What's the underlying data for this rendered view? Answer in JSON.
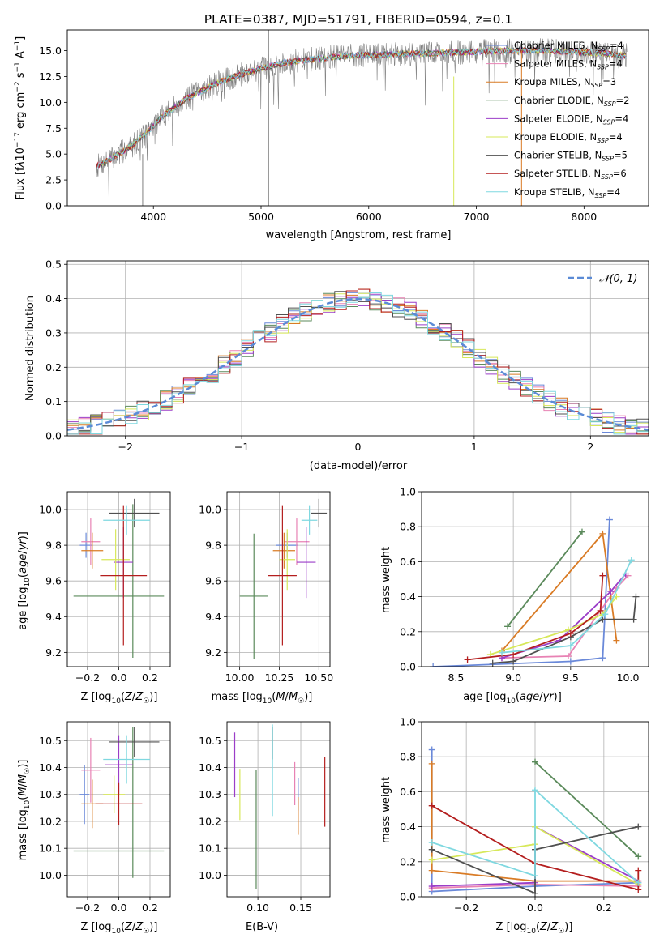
{
  "chart_data": [
    {
      "type": "line",
      "title": "PLATE=0387, MJD=51791, FIBERID=0594, z=0.1",
      "xlabel": "wavelength [Angstrom, rest frame]",
      "ylabel": "Flux [f_λ 10^-17 erg cm^-2 s^-1 A^-1]",
      "xlim": [
        3200,
        8600
      ],
      "ylim": [
        0,
        17
      ],
      "xticks": [
        4000,
        5000,
        6000,
        7000,
        8000
      ],
      "yticks": [
        0.0,
        2.5,
        5.0,
        7.5,
        10.0,
        12.5,
        15.0
      ],
      "continuum_x": [
        3470,
        3600,
        3800,
        3950,
        4100,
        4300,
        4500,
        4700,
        4900,
        5200,
        5500,
        5800,
        6100,
        6400,
        6700,
        7000,
        7300,
        7600,
        7900,
        8200,
        8400
      ],
      "continuum_y": [
        3.8,
        4.5,
        5.8,
        7.2,
        8.8,
        10.3,
        11.4,
        12.3,
        13.0,
        13.8,
        14.2,
        14.5,
        14.6,
        14.7,
        14.8,
        14.9,
        15.0,
        15.0,
        14.9,
        14.7,
        14.5
      ],
      "spikes": [
        {
          "x": 5070,
          "top": 17.0,
          "bottom": 0.0
        },
        {
          "x": 6790,
          "top": 12.5,
          "bottom": 0.0
        },
        {
          "x": 7420,
          "top": 15.0,
          "bottom": 0.0
        },
        {
          "x": 3900,
          "top": 5.0,
          "bottom": 0.0
        }
      ],
      "legend": {
        "placement": "right",
        "entries": [
          {
            "label": "Chabrier MILES, N_SSP=4",
            "color": "#6a89d9"
          },
          {
            "label": "Salpeter MILES, N_SSP=4",
            "color": "#e882b4"
          },
          {
            "label": "Kroupa MILES, N_SSP=3",
            "color": "#d97b25"
          },
          {
            "label": "Chabrier ELODIE, N_SSP=2",
            "color": "#5b8a5b"
          },
          {
            "label": "Salpeter ELODIE, N_SSP=4",
            "color": "#9b3dc8"
          },
          {
            "label": "Kroupa ELODIE, N_SSP=4",
            "color": "#d7e85a"
          },
          {
            "label": "Chabrier STELIB, N_SSP=5",
            "color": "#505050"
          },
          {
            "label": "Salpeter STELIB, N_SSP=6",
            "color": "#b41e1e"
          },
          {
            "label": "Kroupa STELIB, N_SSP=4",
            "color": "#7fd8e0"
          }
        ]
      }
    },
    {
      "type": "histogram",
      "xlabel": "(data-model)/error",
      "ylabel": "Normed distribution",
      "xlim": [
        -2.5,
        2.5
      ],
      "ylim": [
        0,
        0.51
      ],
      "xticks": [
        -2,
        -1,
        0,
        1,
        2
      ],
      "yticks": [
        0.0,
        0.1,
        0.2,
        0.3,
        0.4,
        0.5
      ],
      "grid": true,
      "bin_width": 0.1,
      "legend": {
        "placement": "top-right",
        "label": "𝒩(0, 1)"
      },
      "gaussian_color": "#5b8bd6"
    },
    {
      "type": "scatter",
      "panel": "age-vs-metallicity",
      "xlabel": "Z [log10(Z/Z☉)]",
      "ylabel": "age  [log10(age/yr)]",
      "xlim": [
        -0.33,
        0.33
      ],
      "ylim": [
        9.12,
        10.1
      ],
      "xticks": [
        -0.2,
        0.0,
        0.2
      ],
      "xtick_labels": [
        "−0.2",
        "0.0",
        "0.2"
      ],
      "yticks": [
        9.2,
        9.4,
        9.6,
        9.8,
        10.0
      ],
      "points": [
        {
          "color": "#6a89d9",
          "x": -0.21,
          "xerr": 0.04,
          "y": 9.8,
          "yerr": 0.07
        },
        {
          "color": "#e882b4",
          "x": -0.18,
          "xerr": 0.06,
          "y": 9.82,
          "yerr": 0.13
        },
        {
          "color": "#d97b25",
          "x": -0.17,
          "xerr": 0.07,
          "y": 9.77,
          "yerr": 0.1
        },
        {
          "color": "#5b8a5b",
          "x": 0.0,
          "xerr": 0.29,
          "y": 9.515,
          "yerr": 0.0
        },
        {
          "color": "#5b8a5b",
          "x": 0.09,
          "xerr": 0.0,
          "y": 9.6,
          "yerr": 0.43
        },
        {
          "color": "#9b3dc8",
          "x": 0.03,
          "xerr": 0.06,
          "y": 9.705,
          "yerr": 0.2
        },
        {
          "color": "#d7e85a",
          "x": -0.02,
          "xerr": 0.09,
          "y": 9.72,
          "yerr": 0.17
        },
        {
          "color": "#505050",
          "x": 0.1,
          "xerr": 0.16,
          "y": 9.98,
          "yerr": 0.08
        },
        {
          "color": "#b41e1e",
          "x": 0.03,
          "xerr": 0.15,
          "y": 9.63,
          "yerr": 0.39
        },
        {
          "color": "#7fd8e0",
          "x": 0.05,
          "xerr": 0.15,
          "y": 9.94,
          "yerr": 0.08
        }
      ]
    },
    {
      "type": "scatter",
      "panel": "age-vs-mass",
      "xlabel": "mass [log10(M/M☉)]",
      "ylabel": "",
      "xlim": [
        9.92,
        10.57
      ],
      "ylim": [
        9.12,
        10.1
      ],
      "xticks": [
        10.0,
        10.25,
        10.5
      ],
      "yticks": [
        9.2,
        9.4,
        9.6,
        9.8,
        10.0
      ],
      "points": [
        {
          "color": "#6a89d9",
          "x": 10.3,
          "xerr": 0.07,
          "y": 9.8,
          "yerr": 0.07
        },
        {
          "color": "#e882b4",
          "x": 10.36,
          "xerr": 0.08,
          "y": 9.82,
          "yerr": 0.13
        },
        {
          "color": "#d97b25",
          "x": 10.28,
          "xerr": 0.07,
          "y": 9.77,
          "yerr": 0.1
        },
        {
          "color": "#5b8a5b",
          "x": 10.09,
          "xerr": 0.09,
          "y": 9.515,
          "yerr": 0.35
        },
        {
          "color": "#9b3dc8",
          "x": 10.42,
          "xerr": 0.06,
          "y": 9.705,
          "yerr": 0.2
        },
        {
          "color": "#d7e85a",
          "x": 10.3,
          "xerr": 0.05,
          "y": 9.72,
          "yerr": 0.17
        },
        {
          "color": "#505050",
          "x": 10.5,
          "xerr": 0.05,
          "y": 9.98,
          "yerr": 0.08
        },
        {
          "color": "#b41e1e",
          "x": 10.27,
          "xerr": 0.09,
          "y": 9.63,
          "yerr": 0.39
        },
        {
          "color": "#7fd8e0",
          "x": 10.44,
          "xerr": 0.05,
          "y": 9.94,
          "yerr": 0.08
        }
      ]
    },
    {
      "type": "line",
      "panel": "mass-weight-vs-age",
      "xlabel": "age  [log10(age/yr)]",
      "ylabel": "mass weight",
      "xlim": [
        8.2,
        10.18
      ],
      "ylim": [
        0,
        1.0
      ],
      "xticks": [
        8.5,
        9.0,
        9.5,
        10.0
      ],
      "yticks": [
        0.0,
        0.2,
        0.4,
        0.6,
        0.8,
        1.0
      ],
      "grid": true,
      "series": [
        {
          "color": "#6a89d9",
          "x": [
            8.3,
            9.5,
            9.78,
            9.84
          ],
          "y": [
            0.0,
            0.03,
            0.05,
            0.84
          ]
        },
        {
          "color": "#e882b4",
          "x": [
            8.9,
            9.48,
            9.9,
            10.0
          ],
          "y": [
            0.05,
            0.06,
            0.45,
            0.52
          ]
        },
        {
          "color": "#d97b25",
          "x": [
            8.9,
            9.78,
            9.9
          ],
          "y": [
            0.09,
            0.76,
            0.15
          ]
        },
        {
          "color": "#5b8a5b",
          "x": [
            8.95,
            9.6
          ],
          "y": [
            0.23,
            0.77
          ]
        },
        {
          "color": "#9b3dc8",
          "x": [
            8.9,
            9.4,
            9.85,
            9.98
          ],
          "y": [
            0.05,
            0.15,
            0.43,
            0.53
          ]
        },
        {
          "color": "#d7e85a",
          "x": [
            8.8,
            9.48,
            9.78,
            9.9
          ],
          "y": [
            0.07,
            0.21,
            0.3,
            0.4
          ]
        },
        {
          "color": "#505050",
          "x": [
            8.82,
            9.0,
            9.5,
            9.78,
            10.05,
            10.07
          ],
          "y": [
            0.02,
            0.03,
            0.17,
            0.27,
            0.27,
            0.4
          ]
        },
        {
          "color": "#b41e1e",
          "x": [
            8.6,
            9.0,
            9.5,
            9.76,
            9.78
          ],
          "y": [
            0.04,
            0.07,
            0.19,
            0.32,
            0.52
          ]
        },
        {
          "color": "#7fd8e0",
          "x": [
            8.9,
            9.5,
            9.8,
            10.03
          ],
          "y": [
            0.08,
            0.12,
            0.3,
            0.61
          ]
        }
      ]
    },
    {
      "type": "scatter",
      "panel": "mass-vs-metallicity",
      "xlabel": "Z [log10(Z/Z☉)]",
      "ylabel": "mass [log10(M/M☉)]",
      "xlim": [
        -0.33,
        0.33
      ],
      "ylim": [
        9.92,
        10.57
      ],
      "xticks": [
        -0.2,
        0.0,
        0.2
      ],
      "xtick_labels": [
        "−0.2",
        "0.0",
        "0.2"
      ],
      "yticks": [
        10.0,
        10.1,
        10.2,
        10.3,
        10.4,
        10.5
      ],
      "points": [
        {
          "color": "#6a89d9",
          "x": -0.22,
          "xerr": 0.03,
          "y": 10.3,
          "yerr": 0.11
        },
        {
          "color": "#e882b4",
          "x": -0.18,
          "xerr": 0.06,
          "y": 10.39,
          "yerr": 0.12
        },
        {
          "color": "#d97b25",
          "x": -0.17,
          "xerr": 0.07,
          "y": 10.265,
          "yerr": 0.09
        },
        {
          "color": "#5b8a5b",
          "x": 0.0,
          "xerr": 0.29,
          "y": 10.09,
          "yerr": 0.0
        },
        {
          "color": "#5b8a5b",
          "x": 0.09,
          "xerr": 0.0,
          "y": 10.27,
          "yerr": 0.28
        },
        {
          "color": "#9b3dc8",
          "x": 0.0,
          "xerr": 0.09,
          "y": 10.41,
          "yerr": 0.11
        },
        {
          "color": "#d7e85a",
          "x": -0.03,
          "xerr": 0.07,
          "y": 10.3,
          "yerr": 0.07
        },
        {
          "color": "#505050",
          "x": 0.1,
          "xerr": 0.16,
          "y": 10.495,
          "yerr": 0.055
        },
        {
          "color": "#b41e1e",
          "x": 0.0,
          "xerr": 0.15,
          "y": 10.265,
          "yerr": 0.08
        },
        {
          "color": "#7fd8e0",
          "x": 0.05,
          "xerr": 0.15,
          "y": 10.43,
          "yerr": 0.09
        }
      ]
    },
    {
      "type": "scatter",
      "panel": "mass-vs-extinction",
      "xlabel": "E(B-V)",
      "ylabel": "",
      "xlim": [
        0.064,
        0.184
      ],
      "ylim": [
        9.92,
        10.57
      ],
      "xticks": [
        0.1,
        0.15
      ],
      "yticks": [
        10.0,
        10.1,
        10.2,
        10.3,
        10.4,
        10.5
      ],
      "points": [
        {
          "color": "#9b3dc8",
          "x": 0.073,
          "yerr": 0.12,
          "y": 10.41
        },
        {
          "color": "#d7e85a",
          "x": 0.079,
          "yerr": 0.095,
          "y": 10.3
        },
        {
          "color": "#5b8a5b",
          "x": 0.098,
          "yerr": 0.22,
          "y": 10.17
        },
        {
          "color": "#505050",
          "x": 0.117,
          "yerr": 0.06,
          "y": 10.49
        },
        {
          "color": "#7fd8e0",
          "x": 0.117,
          "yerr": 0.17,
          "y": 10.39
        },
        {
          "color": "#e882b4",
          "x": 0.143,
          "yerr": 0.08,
          "y": 10.34
        },
        {
          "color": "#6a89d9",
          "x": 0.147,
          "yerr": 0.06,
          "y": 10.3
        },
        {
          "color": "#d97b25",
          "x": 0.147,
          "yerr": 0.07,
          "y": 10.22
        },
        {
          "color": "#b41e1e",
          "x": 0.178,
          "yerr": 0.13,
          "y": 10.31
        }
      ]
    },
    {
      "type": "line",
      "panel": "mass-weight-vs-metallicity",
      "xlabel": "Z [log10(Z/Z☉)]",
      "ylabel": "mass weight",
      "xlim": [
        -0.33,
        0.33
      ],
      "ylim": [
        0,
        1.0
      ],
      "xticks": [
        -0.2,
        0.0,
        0.2
      ],
      "xtick_labels": [
        "−0.2",
        "0.0",
        "0.2"
      ],
      "yticks": [
        0.0,
        0.2,
        0.4,
        0.6,
        0.8,
        1.0
      ],
      "grid": true,
      "series": [
        {
          "color": "#6a89d9",
          "x": [
            -0.3,
            -0.3,
            0.0,
            0.3
          ],
          "y": [
            0.84,
            0.03,
            0.06,
            0.08
          ]
        },
        {
          "color": "#e882b4",
          "x": [
            -0.3,
            0.0,
            0.3
          ],
          "y": [
            0.05,
            0.07,
            0.06
          ]
        },
        {
          "color": "#d97b25",
          "x": [
            -0.3,
            -0.3,
            0.0,
            0.3
          ],
          "y": [
            0.76,
            0.15,
            0.09,
            0.09
          ]
        },
        {
          "color": "#5b8a5b",
          "x": [
            0.0,
            0.3
          ],
          "y": [
            0.77,
            0.23
          ]
        },
        {
          "color": "#9b3dc8",
          "x": [
            -0.3,
            0.0,
            0.0,
            0.3
          ],
          "y": [
            0.06,
            0.08,
            0.4,
            0.09
          ]
        },
        {
          "color": "#d7e85a",
          "x": [
            -0.3,
            0.0,
            0.0,
            0.3
          ],
          "y": [
            0.21,
            0.3,
            0.4,
            0.07
          ]
        },
        {
          "color": "#505050",
          "x": [
            -0.3,
            0.0,
            0.0,
            0.3
          ],
          "y": [
            0.27,
            0.02,
            0.27,
            0.4
          ]
        },
        {
          "color": "#b41e1e",
          "x": [
            -0.3,
            0.0,
            0.3,
            0.3
          ],
          "y": [
            0.52,
            0.19,
            0.04,
            0.15
          ]
        },
        {
          "color": "#7fd8e0",
          "x": [
            -0.3,
            0.0,
            0.0,
            0.3
          ],
          "y": [
            0.31,
            0.12,
            0.61,
            0.08
          ]
        }
      ]
    }
  ]
}
